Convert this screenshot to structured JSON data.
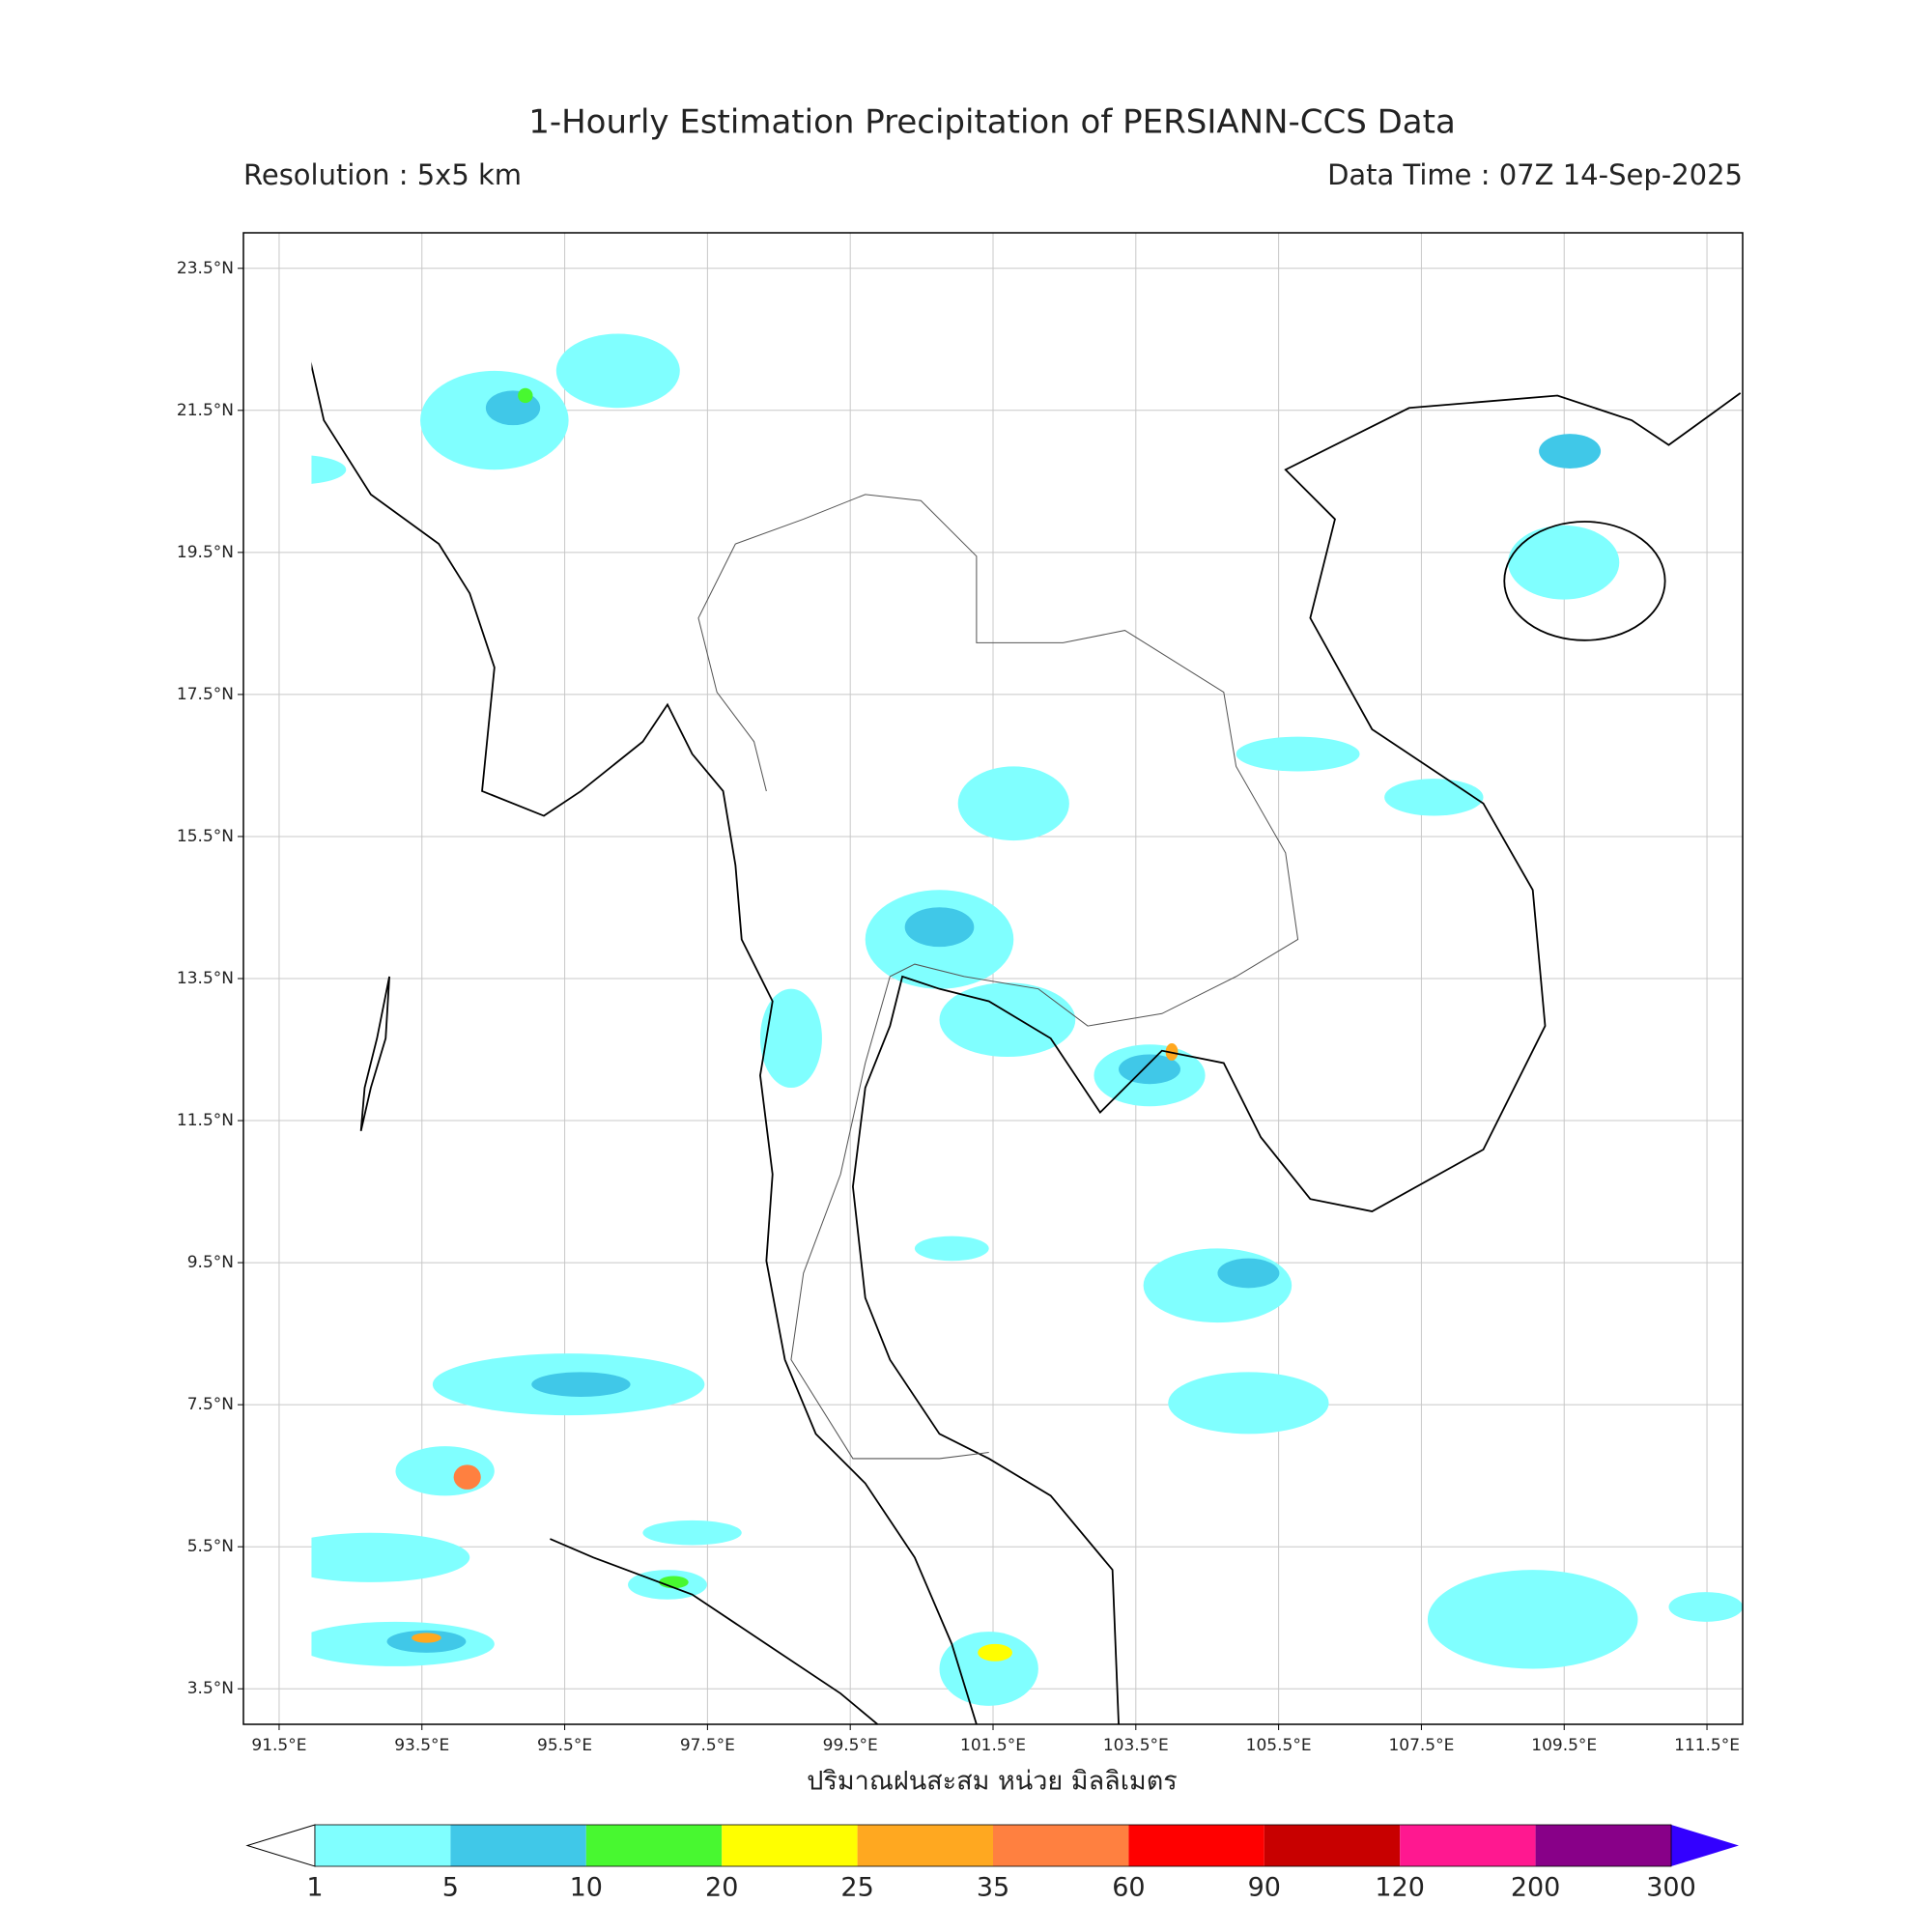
{
  "header": {
    "title": "1-Hourly Estimation Precipitation of PERSIANN-CCS Data",
    "resolution": "Resolution : 5x5 km",
    "data_time": "Data Time : 07Z 14-Sep-2025"
  },
  "map": {
    "xlim": [
      91,
      112
    ],
    "ylim": [
      3,
      24
    ],
    "xticks": [
      {
        "value": 91.5,
        "label": "91.5°E"
      },
      {
        "value": 93.5,
        "label": "93.5°E"
      },
      {
        "value": 95.5,
        "label": "95.5°E"
      },
      {
        "value": 97.5,
        "label": "97.5°E"
      },
      {
        "value": 99.5,
        "label": "99.5°E"
      },
      {
        "value": 101.5,
        "label": "101.5°E"
      },
      {
        "value": 103.5,
        "label": "103.5°E"
      },
      {
        "value": 105.5,
        "label": "105.5°E"
      },
      {
        "value": 107.5,
        "label": "107.5°E"
      },
      {
        "value": 109.5,
        "label": "109.5°E"
      },
      {
        "value": 111.5,
        "label": "111.5°E"
      }
    ],
    "yticks": [
      {
        "value": 3.5,
        "label": "3.5°N"
      },
      {
        "value": 5.5,
        "label": "5.5°N"
      },
      {
        "value": 7.5,
        "label": "7.5°N"
      },
      {
        "value": 9.5,
        "label": "9.5°N"
      },
      {
        "value": 11.5,
        "label": "11.5°N"
      },
      {
        "value": 13.5,
        "label": "13.5°N"
      },
      {
        "value": 15.5,
        "label": "15.5°N"
      },
      {
        "value": 17.5,
        "label": "17.5°N"
      },
      {
        "value": 19.5,
        "label": "19.5°N"
      },
      {
        "value": 21.5,
        "label": "21.5°N"
      },
      {
        "value": 23.5,
        "label": "23.5°N"
      }
    ],
    "grid": true,
    "xlabel": "ปริมาณฝนสะสม หน่วย มิลลิเมตร"
  },
  "colorbar": {
    "levels": [
      1,
      5,
      10,
      20,
      25,
      35,
      60,
      90,
      120,
      200,
      300
    ],
    "colors": [
      "#80ffff",
      "#40c8e8",
      "#48f830",
      "#ffff00",
      "#ffa820",
      "#ff8040",
      "#ff0000",
      "#c80000",
      "#ff1890",
      "#880088"
    ],
    "under_color": "#ffffff",
    "over_color": "#3300ff"
  }
}
